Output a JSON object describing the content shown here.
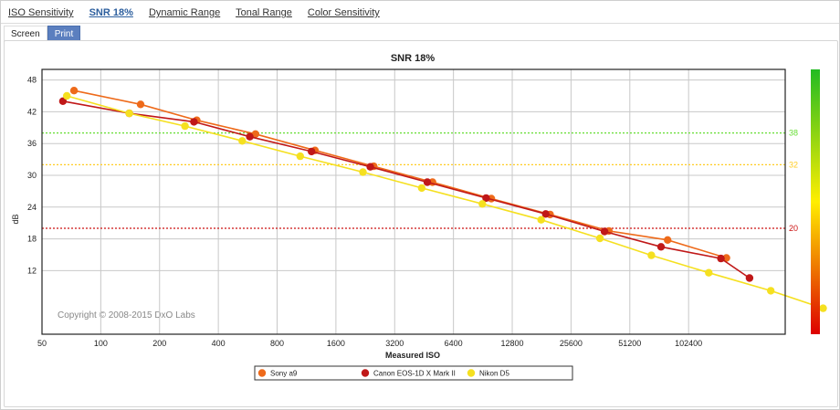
{
  "tabs": [
    {
      "label": "ISO Sensitivity",
      "active": false
    },
    {
      "label": "SNR 18%",
      "active": true
    },
    {
      "label": "Dynamic Range",
      "active": false
    },
    {
      "label": "Tonal Range",
      "active": false
    },
    {
      "label": "Color Sensitivity",
      "active": false
    }
  ],
  "mode": {
    "screen_label": "Screen",
    "print_label": "Print"
  },
  "chart_data": {
    "type": "line",
    "title": "SNR 18%",
    "xlabel": "Measured ISO",
    "ylabel": "dB",
    "x_scale": "log2",
    "xlim": [
      50,
      320000
    ],
    "ylim": [
      0,
      50
    ],
    "x_ticks": [
      50,
      100,
      200,
      400,
      800,
      1600,
      3200,
      6400,
      12800,
      25600,
      51200,
      102400
    ],
    "x_tick_labels": [
      "50",
      "100",
      "200",
      "400",
      "800",
      "1600",
      "3200",
      "6400",
      "12800",
      "25600",
      "51200",
      "102400"
    ],
    "y_ticks": [
      12,
      18,
      24,
      30,
      36,
      42,
      48
    ],
    "grid": true,
    "legend_position": "bottom",
    "copyright": "Copyright © 2008-2015 DxO Labs",
    "reference_lines": [
      {
        "value": 38,
        "label": "38",
        "color": "#66dd33"
      },
      {
        "value": 32,
        "label": "32",
        "color": "#ffcc22"
      },
      {
        "value": 20,
        "label": "20",
        "color": "#cc1111"
      }
    ],
    "color_scale": {
      "top": "#22bb22",
      "mid": "#ffee00",
      "bottom": "#dd0000"
    },
    "series": [
      {
        "name": "Sony a9",
        "color": "#ee6a1a",
        "points": [
          [
            73,
            46.0
          ],
          [
            160,
            43.4
          ],
          [
            310,
            40.4
          ],
          [
            620,
            37.8
          ],
          [
            1250,
            34.7
          ],
          [
            2500,
            31.7
          ],
          [
            5000,
            28.7
          ],
          [
            10000,
            25.6
          ],
          [
            20000,
            22.6
          ],
          [
            40000,
            19.5
          ],
          [
            80000,
            17.8
          ],
          [
            160000,
            14.4
          ]
        ]
      },
      {
        "name": "Canon  EOS-1D X Mark II",
        "color": "#c01818",
        "points": [
          [
            64,
            44.0
          ],
          [
            140,
            41.7
          ],
          [
            300,
            40.1
          ],
          [
            580,
            37.3
          ],
          [
            1200,
            34.5
          ],
          [
            2400,
            31.6
          ],
          [
            4700,
            28.7
          ],
          [
            9400,
            25.7
          ],
          [
            19000,
            22.7
          ],
          [
            38000,
            19.4
          ],
          [
            74000,
            16.5
          ],
          [
            150000,
            14.3
          ],
          [
            210000,
            10.6
          ]
        ]
      },
      {
        "name": "Nikon D5",
        "color": "#f5e020",
        "points": [
          [
            67,
            45.0
          ],
          [
            140,
            41.7
          ],
          [
            270,
            39.3
          ],
          [
            530,
            36.5
          ],
          [
            1050,
            33.6
          ],
          [
            2200,
            30.6
          ],
          [
            4400,
            27.6
          ],
          [
            9000,
            24.6
          ],
          [
            18000,
            21.6
          ],
          [
            36000,
            18.1
          ],
          [
            66000,
            14.9
          ],
          [
            130000,
            11.6
          ],
          [
            270000,
            8.2
          ],
          [
            500000,
            4.9
          ]
        ]
      }
    ]
  }
}
